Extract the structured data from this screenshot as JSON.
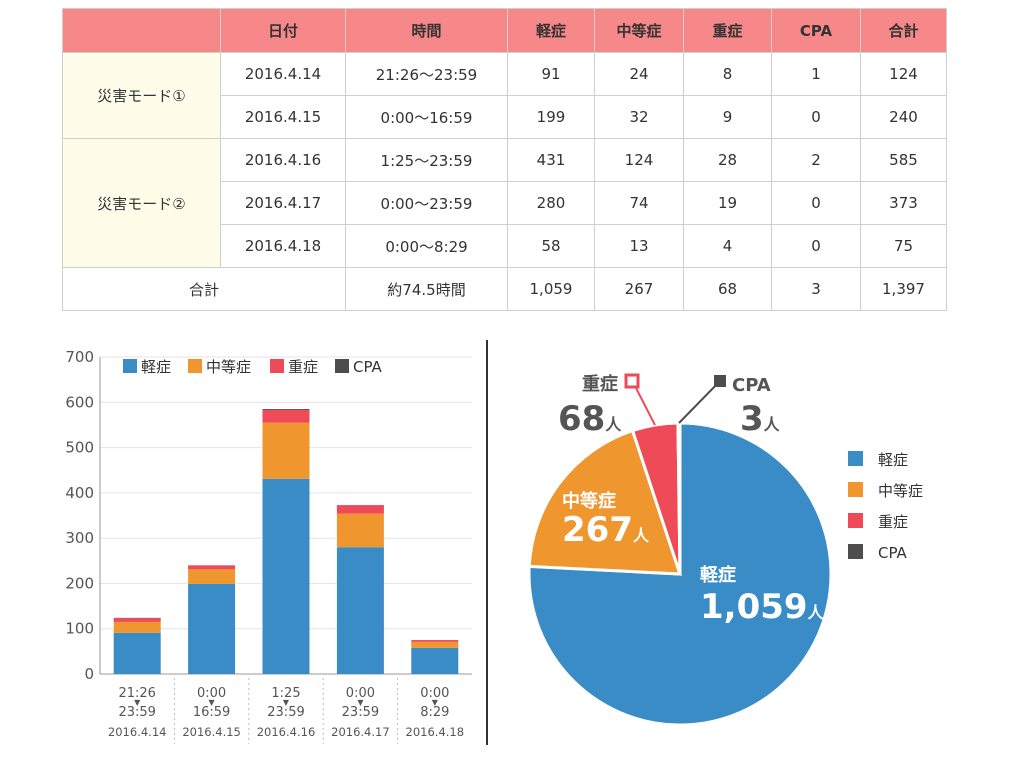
{
  "table": {
    "headers": [
      "",
      "日付",
      "時間",
      "軽症",
      "中等症",
      "重症",
      "CPA",
      "合計"
    ],
    "groups": [
      {
        "mode": "災害モード①",
        "rows": [
          {
            "date": "2016.4.14",
            "time": "21:26〜23:59",
            "mild": "91",
            "moderate": "24",
            "severe": "8",
            "cpa": "1",
            "total": "124"
          },
          {
            "date": "2016.4.15",
            "time": "0:00〜16:59",
            "mild": "199",
            "moderate": "32",
            "severe": "9",
            "cpa": "0",
            "total": "240"
          }
        ]
      },
      {
        "mode": "災害モード②",
        "rows": [
          {
            "date": "2016.4.16",
            "time": "1:25〜23:59",
            "mild": "431",
            "moderate": "124",
            "severe": "28",
            "cpa": "2",
            "total": "585"
          },
          {
            "date": "2016.4.17",
            "time": "0:00〜23:59",
            "mild": "280",
            "moderate": "74",
            "severe": "19",
            "cpa": "0",
            "total": "373"
          },
          {
            "date": "2016.4.18",
            "time": "0:00〜8:29",
            "mild": "58",
            "moderate": "13",
            "severe": "4",
            "cpa": "0",
            "total": "75"
          }
        ]
      }
    ],
    "total_row": {
      "label": "合計",
      "time": "約74.5時間",
      "mild": "1,059",
      "moderate": "267",
      "severe": "68",
      "cpa": "3",
      "total": "1,397"
    }
  },
  "chart_data": [
    {
      "type": "bar",
      "stacked": true,
      "categories": [
        {
          "start": "21:26",
          "end": "23:59",
          "date": "2016.4.14"
        },
        {
          "start": "0:00",
          "end": "16:59",
          "date": "2016.4.15"
        },
        {
          "start": "1:25",
          "end": "23:59",
          "date": "2016.4.16"
        },
        {
          "start": "0:00",
          "end": "23:59",
          "date": "2016.4.17"
        },
        {
          "start": "0:00",
          "end": "8:29",
          "date": "2016.4.18"
        }
      ],
      "series": [
        {
          "name": "軽症",
          "color": "#3a8cc7",
          "values": [
            91,
            199,
            431,
            280,
            58
          ]
        },
        {
          "name": "中等症",
          "color": "#f0962e",
          "values": [
            24,
            32,
            124,
            74,
            13
          ]
        },
        {
          "name": "重症",
          "color": "#ee4a57",
          "values": [
            8,
            9,
            28,
            19,
            4
          ]
        },
        {
          "name": "CPA",
          "color": "#4d4d4d",
          "values": [
            1,
            0,
            2,
            0,
            0
          ]
        }
      ],
      "ylim": [
        0,
        700
      ],
      "yticks": [
        0,
        100,
        200,
        300,
        400,
        500,
        600,
        700
      ],
      "legend": "top",
      "grid": true
    },
    {
      "type": "pie",
      "unit": "人",
      "slices": [
        {
          "name": "軽症",
          "value": 1059,
          "label": "1,059",
          "color": "#3a8cc7"
        },
        {
          "name": "中等症",
          "value": 267,
          "label": "267",
          "color": "#f0962e"
        },
        {
          "name": "重症",
          "value": 68,
          "label": "68",
          "color": "#ee4a57"
        },
        {
          "name": "CPA",
          "value": 3,
          "label": "3",
          "color": "#4d4d4d"
        }
      ],
      "legend": "right"
    }
  ]
}
